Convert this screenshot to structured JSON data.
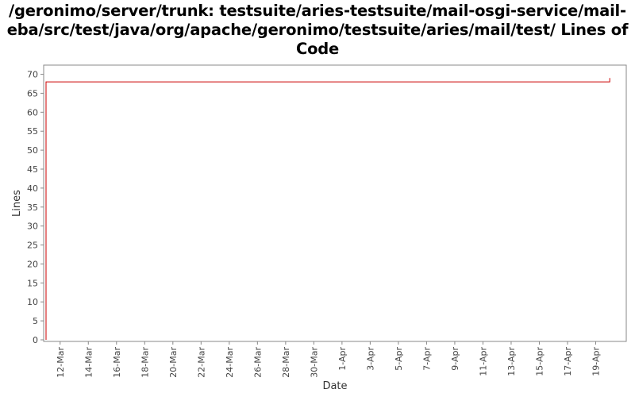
{
  "chart_data": {
    "type": "line",
    "title": "/geronimo/server/trunk: testsuite/aries-testsuite/mail-osgi-service/mail-\neba/src/test/java/org/apache/geronimo/testsuite/aries/mail/test/ Lines of\nCode",
    "xlabel": "Date",
    "ylabel": "Lines",
    "ylim": [
      0,
      72
    ],
    "yticks": [
      0,
      5,
      10,
      15,
      20,
      25,
      30,
      35,
      40,
      45,
      50,
      55,
      60,
      65,
      70
    ],
    "xlim": [
      "2010-03-11",
      "2010-04-21"
    ],
    "xtick_labels": [
      "12-Mar",
      "14-Mar",
      "16-Mar",
      "18-Mar",
      "20-Mar",
      "22-Mar",
      "24-Mar",
      "26-Mar",
      "28-Mar",
      "30-Mar",
      "1-Apr",
      "3-Apr",
      "5-Apr",
      "7-Apr",
      "9-Apr",
      "11-Apr",
      "13-Apr",
      "15-Apr",
      "17-Apr",
      "19-Apr"
    ],
    "xtick_dates": [
      "2010-03-12",
      "2010-03-14",
      "2010-03-16",
      "2010-03-18",
      "2010-03-20",
      "2010-03-22",
      "2010-03-24",
      "2010-03-26",
      "2010-03-28",
      "2010-03-30",
      "2010-04-01",
      "2010-04-03",
      "2010-04-05",
      "2010-04-07",
      "2010-04-09",
      "2010-04-11",
      "2010-04-13",
      "2010-04-15",
      "2010-04-17",
      "2010-04-19"
    ],
    "grid": false,
    "series": [
      {
        "color": "#cc0000",
        "step": true,
        "points": [
          {
            "x": "2010-03-11",
            "y": 0
          },
          {
            "x": "2010-03-11",
            "y": 68
          },
          {
            "x": "2010-04-20",
            "y": 68
          },
          {
            "x": "2010-04-20",
            "y": 69
          }
        ]
      }
    ]
  }
}
